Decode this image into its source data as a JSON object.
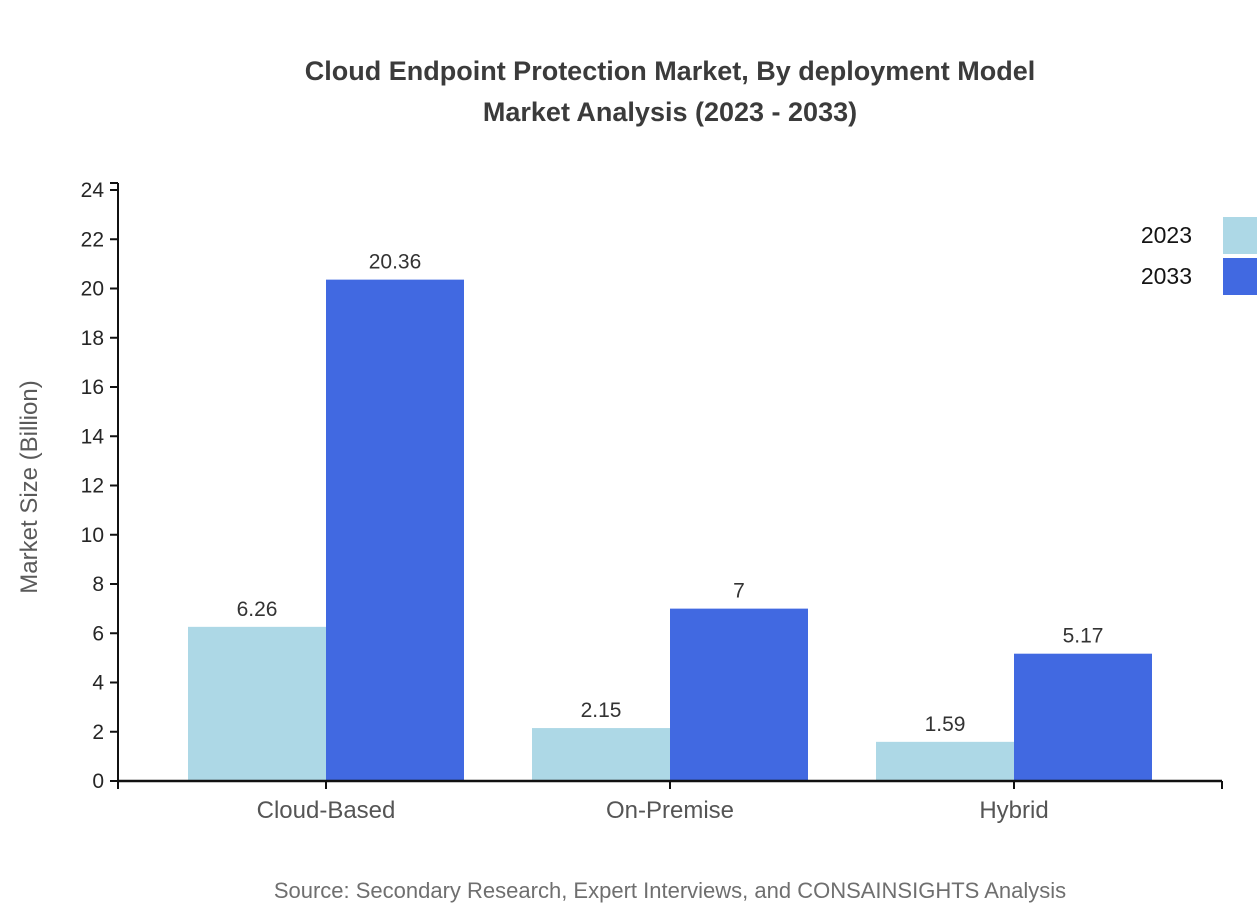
{
  "title": {
    "line1": "Cloud Endpoint Protection Market, By deployment Model",
    "line2": "Market Analysis (2023 - 2033)"
  },
  "y_axis": {
    "label": "Market Size (Billion)"
  },
  "legend": {
    "items": [
      {
        "label": "2023",
        "color": "#ADD8E6"
      },
      {
        "label": "2033",
        "color": "#4169E1"
      }
    ]
  },
  "footer": {
    "source": "Source: Secondary Research, Expert Interviews, and CONSAINSIGHTS Analysis"
  },
  "chart_data": {
    "type": "bar",
    "title": "Cloud Endpoint Protection Market, By deployment Model Market Analysis (2023 - 2033)",
    "categories": [
      "Cloud-Based",
      "On-Premise",
      "Hybrid"
    ],
    "series": [
      {
        "name": "2023",
        "color": "#ADD8E6",
        "values": [
          6.26,
          2.15,
          1.59
        ]
      },
      {
        "name": "2033",
        "color": "#4169E1",
        "values": [
          20.36,
          7,
          5.17
        ]
      }
    ],
    "value_labels": [
      "6.26",
      "20.36",
      "2.15",
      "7",
      "1.59",
      "5.17"
    ],
    "xlabel": "",
    "ylabel": "Market Size (Billion)",
    "ylim": [
      0,
      24
    ],
    "ytick_step": 2,
    "yticks": [
      0,
      2,
      4,
      6,
      8,
      10,
      12,
      14,
      16,
      18,
      20,
      22,
      24
    ],
    "grid": false,
    "legend_position": "top-right",
    "bar_value_labels_shown": true
  }
}
